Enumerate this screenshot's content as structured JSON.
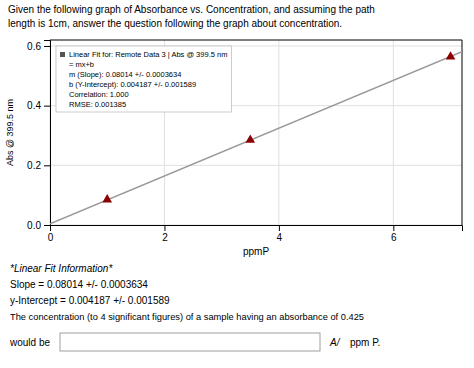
{
  "chart_data": {
    "type": "scatter",
    "title": "Given the following graph of Absorbance vs. Concentration, and assuming the path",
    "subtitle": "length is 1cm, answer the question following the graph about concentration.",
    "x_label": "ppmP",
    "y_label": "Abs @ 399.5 nm",
    "x": [
      1.0,
      3.5,
      7.0
    ],
    "values": [
      0.0849,
      0.2848,
      0.5641
    ],
    "color": "#8B0000",
    "marker": "triangle",
    "fit_line": {
      "slope": 0.08014,
      "intercept": 0.004187,
      "color": "#999999"
    },
    "xlim": [
      0,
      7.2
    ],
    "ylim": [
      0.0,
      0.62
    ],
    "xticks": [
      0,
      2,
      4,
      6
    ],
    "yticks": [
      {
        "value": 0.0,
        "label": "0.0"
      },
      0.2,
      0.4,
      0.6
    ],
    "grid": true,
    "annotations": {
      "fit_box": [
        "Linear Fit for: Remote Data 3 | Abs @ 399.5 nm",
        "= mx+b",
        "m (Slope): 0.08014 +/- 0.0003634",
        "b (Y-Intercept): 0.004187 +/- 0.001589",
        "Correlation: 1.000",
        "RMSE: 0.001385"
      ],
      "info": [
        "*Linear Fit Information*",
        "Slope = 0.08014 +/- 0.0003634",
        "y-Intercept = 0.004187 +/- 0.001589",
        "The concentration (to 4 significant figures) of a sample having an absorbance of 0.425"
      ],
      "answer": [
        "would be",
        "A/",
        "ppm P."
      ]
    }
  }
}
